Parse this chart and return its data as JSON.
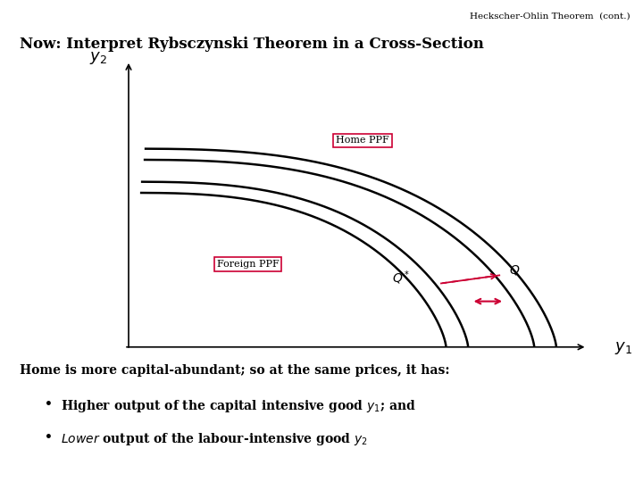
{
  "title_header": "Heckscher-Ohlin Theorem  (cont.)",
  "title_main": "Now: Interpret Rybsczynski Theorem in a Cross-Section",
  "label_home_ppf": "Home PPF",
  "label_foreign_ppf": "Foreign PPF",
  "label_Q": "$Q$",
  "label_Qstar": "$Q^*$",
  "bg_color": "#ffffff",
  "curve_color": "#000000",
  "arrow_color": "#cc0033",
  "box_color": "#cc0033",
  "text_color": "#000000"
}
